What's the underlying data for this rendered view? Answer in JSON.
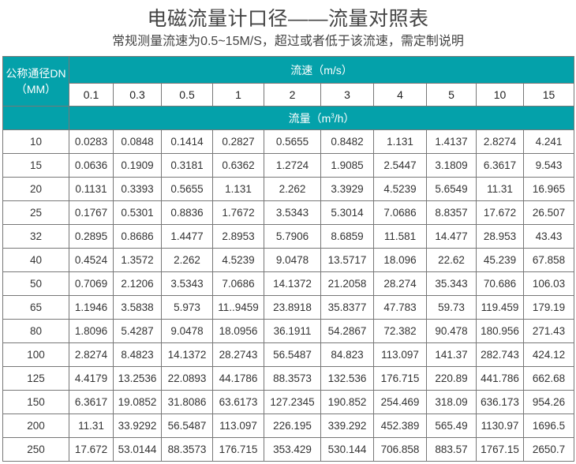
{
  "title": "电磁流量计口径——流量对照表",
  "subtitle": "常规测量流速为0.5~15M/S，超过或者低于该流速，需定制说明",
  "table": {
    "dn_header_line1": "公称通径DN",
    "dn_header_line2": "（MM）",
    "velocity_header": "流速（m/s）",
    "flow_header_prefix": "流量（m",
    "flow_header_sup": "3",
    "flow_header_suffix": "/h）",
    "velocities": [
      "0.1",
      "0.3",
      "0.5",
      "1",
      "2",
      "3",
      "4",
      "5",
      "10",
      "15"
    ],
    "rows": [
      {
        "dn": "10",
        "values": [
          "0.0283",
          "0.0848",
          "0.1414",
          "0.2827",
          "0.5655",
          "0.8482",
          "1.131",
          "1.4137",
          "2.8274",
          "4.241"
        ]
      },
      {
        "dn": "15",
        "values": [
          "0.0636",
          "0.1909",
          "0.3181",
          "0.6362",
          "1.2724",
          "1.9085",
          "2.5447",
          "3.1809",
          "6.3617",
          "9.543"
        ]
      },
      {
        "dn": "20",
        "values": [
          "0.1131",
          "0.3393",
          "0.5655",
          "1.131",
          "2.262",
          "3.3929",
          "4.5239",
          "5.6549",
          "11.31",
          "16.965"
        ]
      },
      {
        "dn": "25",
        "values": [
          "0.1767",
          "0.5301",
          "0.8836",
          "1.7672",
          "3.5343",
          "5.3014",
          "7.0686",
          "8.8357",
          "17.672",
          "26.507"
        ]
      },
      {
        "dn": "32",
        "values": [
          "0.2895",
          "0.8686",
          "1.4477",
          "2.8953",
          "5.7906",
          "8.6859",
          "11.581",
          "14.477",
          "28.953",
          "43.43"
        ]
      },
      {
        "dn": "40",
        "values": [
          "0.4524",
          "1.3572",
          "2.262",
          "4.5239",
          "9.0478",
          "13.5717",
          "18.096",
          "22.62",
          "45.239",
          "67.858"
        ]
      },
      {
        "dn": "50",
        "values": [
          "0.7069",
          "2.1206",
          "3.5343",
          "7.0686",
          "14.1372",
          "21.2058",
          "28.274",
          "35.343",
          "70.686",
          "106.03"
        ]
      },
      {
        "dn": "65",
        "values": [
          "1.1946",
          "3.5838",
          "5.973",
          "11..9459",
          "23.8918",
          "35.8377",
          "47.783",
          "59.73",
          "119.459",
          "179.19"
        ]
      },
      {
        "dn": "80",
        "values": [
          "1.8096",
          "5.4287",
          "9.0478",
          "18.0956",
          "36.1911",
          "54.2867",
          "72.382",
          "90.478",
          "180.956",
          "271.43"
        ]
      },
      {
        "dn": "100",
        "values": [
          "2.8274",
          "8.4823",
          "14.1372",
          "28.2743",
          "56.5487",
          "84.823",
          "113.097",
          "141.37",
          "282.743",
          "424.12"
        ]
      },
      {
        "dn": "125",
        "values": [
          "4.4179",
          "13.2536",
          "22.0893",
          "44.1786",
          "88.3573",
          "132.536",
          "176.715",
          "220.89",
          "441.786",
          "662.68"
        ]
      },
      {
        "dn": "150",
        "values": [
          "6.3617",
          "19.0852",
          "31.8086",
          "63.6173",
          "127.2345",
          "190.852",
          "254.469",
          "318.09",
          "636.173",
          "954.26"
        ]
      },
      {
        "dn": "200",
        "values": [
          "11.31",
          "33.9292",
          "56.5487",
          "113.097",
          "226.195",
          "339.292",
          "452.389",
          "565.49",
          "1130.97",
          "1696.5"
        ]
      },
      {
        "dn": "250",
        "values": [
          "17.672",
          "53.0144",
          "88.3573",
          "176.715",
          "353.429",
          "530.144",
          "706.858",
          "883.57",
          "1767.15",
          "2650.7"
        ]
      }
    ]
  },
  "colors": {
    "header_bg": "#04a1aa",
    "header_text": "#ffffff",
    "border": "#777777"
  }
}
